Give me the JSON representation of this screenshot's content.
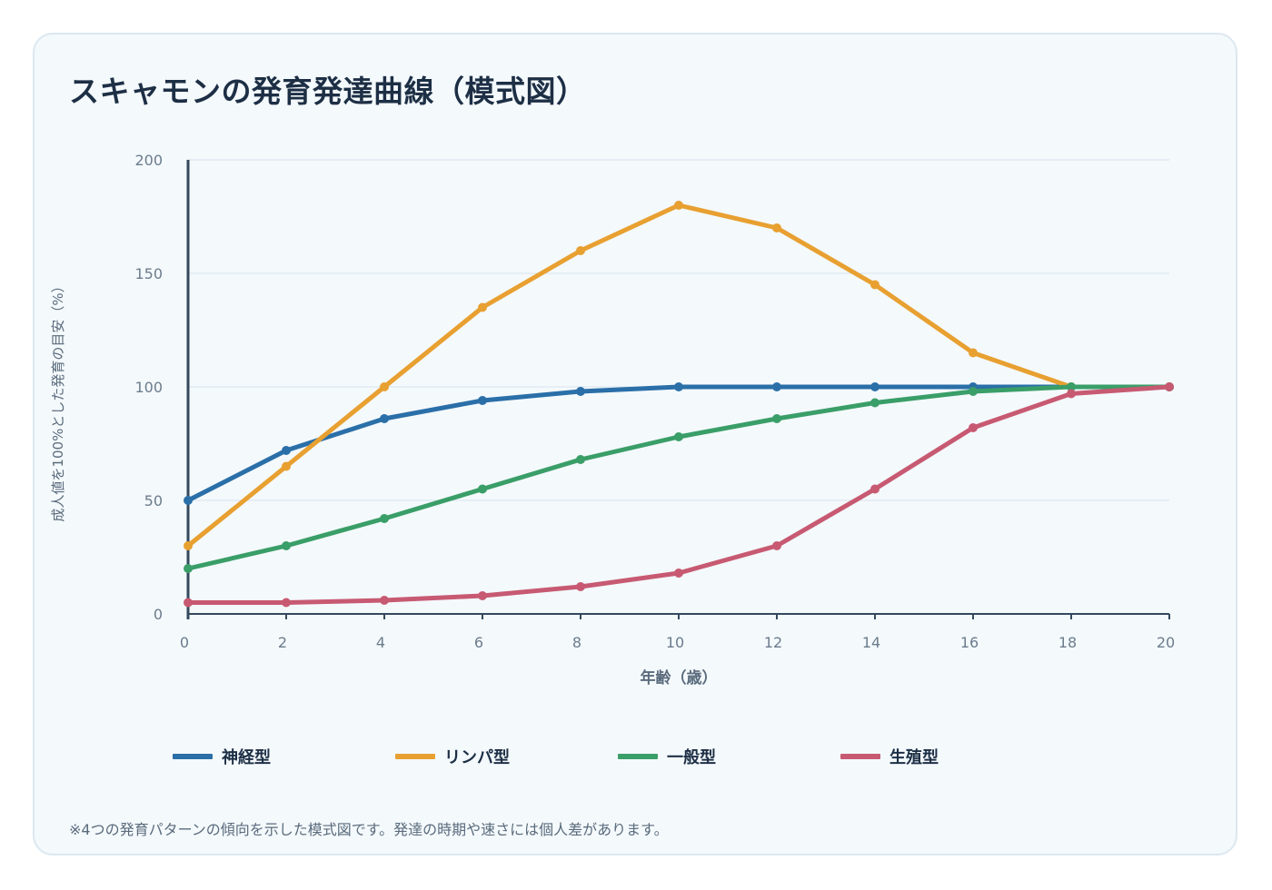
{
  "title": "スキャモンの発育発達曲線（模式図）",
  "note": "※4つの発育パターンの傾向を示した模式図です。発達の時期や速さには個人差があります。",
  "chart_data": {
    "type": "line",
    "title": "スキャモンの発育発達曲線（模式図）",
    "xlabel": "年齢（歳）",
    "ylabel": "成人値を100%とした発育の目安（%）",
    "xlim": [
      0,
      20
    ],
    "ylim": [
      0,
      200
    ],
    "x_ticks": [
      0,
      2,
      4,
      6,
      8,
      10,
      12,
      14,
      16,
      18,
      20
    ],
    "y_ticks": [
      0,
      50,
      100,
      150,
      200
    ],
    "grid": true,
    "legend_position": "bottom",
    "x": [
      0,
      2,
      4,
      6,
      8,
      10,
      12,
      14,
      16,
      18,
      20
    ],
    "series": [
      {
        "name": "神経型",
        "color": "#2a6fa8",
        "values": [
          50,
          72,
          86,
          94,
          98,
          100,
          100,
          100,
          100,
          100,
          100
        ]
      },
      {
        "name": "リンパ型",
        "color": "#e8a031",
        "values": [
          30,
          65,
          100,
          135,
          160,
          180,
          170,
          145,
          115,
          100,
          100
        ]
      },
      {
        "name": "一般型",
        "color": "#3a9e68",
        "values": [
          20,
          30,
          42,
          55,
          68,
          78,
          86,
          93,
          98,
          100,
          100
        ]
      },
      {
        "name": "生殖型",
        "color": "#c75a72",
        "values": [
          5,
          5,
          6,
          8,
          12,
          18,
          30,
          55,
          82,
          97,
          100
        ]
      }
    ]
  }
}
